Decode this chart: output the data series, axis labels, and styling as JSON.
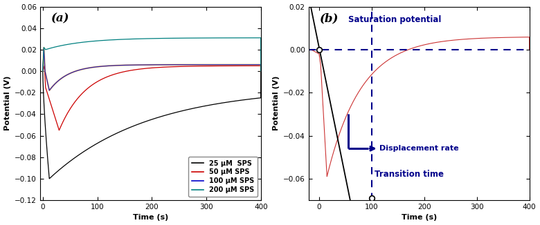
{
  "panel_a": {
    "title": "(a)",
    "xlabel": "Time (s)",
    "ylabel": "Potential (V)",
    "xlim": [
      -5,
      400
    ],
    "ylim": [
      -0.12,
      0.06
    ],
    "yticks": [
      -0.12,
      -0.1,
      -0.08,
      -0.06,
      -0.04,
      -0.02,
      0.0,
      0.02,
      0.04,
      0.06
    ],
    "xticks": [
      0,
      100,
      200,
      300,
      400
    ],
    "curves": {
      "25uM": {
        "color": "#000000",
        "label": "25 μM  SPS"
      },
      "50uM": {
        "color": "#cc0000",
        "label": "50 μM SPS"
      },
      "100uM": {
        "color": "#0000cc",
        "label": "100 μM SPS"
      },
      "200uM": {
        "color": "#008080",
        "label": "200 μM SPS"
      }
    }
  },
  "panel_b": {
    "title": "(b)",
    "xlabel": "Time (s)",
    "ylabel": "Potential (V)",
    "xlim": [
      -20,
      400
    ],
    "ylim": [
      -0.07,
      0.02
    ],
    "yticks": [
      -0.06,
      -0.04,
      -0.02,
      0.0,
      0.02
    ],
    "xticks": [
      0,
      100,
      200,
      300,
      400
    ],
    "curve_color": "#cc3333",
    "line_color": "#000000",
    "annotation_color": "#00008B",
    "saturation_label": "Saturation potential",
    "displacement_label": "Displacement rate",
    "transition_label": "Transition time",
    "transition_time": 100,
    "saturation_potential": 0.0
  }
}
